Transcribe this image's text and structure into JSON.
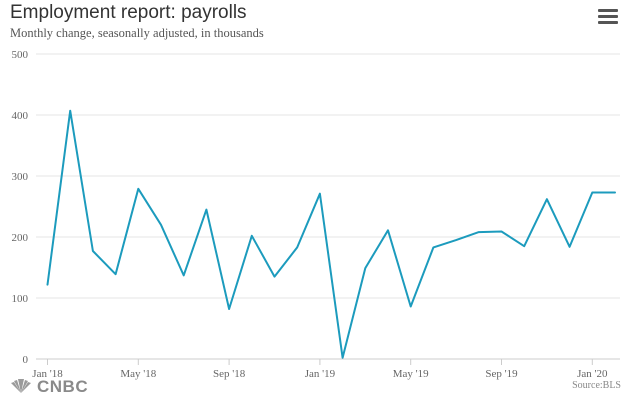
{
  "chart_data": {
    "type": "line",
    "title": "Employment report: payrolls",
    "subtitle": "Monthly change, seasonally adjusted, in thousands",
    "source": "Source:BLS",
    "logo": "CNBC",
    "x": [
      "Jan '18",
      "Feb '18",
      "Mar '18",
      "Apr '18",
      "May '18",
      "Jun '18",
      "Jul '18",
      "Aug '18",
      "Sep '18",
      "Oct '18",
      "Nov '18",
      "Dec '18",
      "Jan '19",
      "Feb '19",
      "Mar '19",
      "Apr '19",
      "May '19",
      "Jun '19",
      "Jul '19",
      "Aug '19",
      "Sep '19",
      "Oct '19",
      "Nov '19",
      "Dec '19",
      "Jan '20",
      "Feb '20"
    ],
    "values": [
      122,
      407,
      177,
      139,
      279,
      220,
      137,
      245,
      82,
      202,
      135,
      183,
      271,
      2,
      149,
      211,
      86,
      183,
      195,
      208,
      209,
      185,
      262,
      184,
      273,
      273
    ],
    "x_tick_labels": [
      {
        "index": 0,
        "label": "Jan '18"
      },
      {
        "index": 4,
        "label": "May '18"
      },
      {
        "index": 8,
        "label": "Sep '18"
      },
      {
        "index": 12,
        "label": "Jan '19"
      },
      {
        "index": 16,
        "label": "May '19"
      },
      {
        "index": 20,
        "label": "Sep '19"
      },
      {
        "index": 24,
        "label": "Jan '20"
      }
    ],
    "y_ticks": [
      0,
      100,
      200,
      300,
      400,
      500
    ],
    "ylim": [
      0,
      500
    ],
    "grid": true,
    "legend": "none",
    "line_color": "#1c9bbd"
  },
  "icons": {
    "menu": "menu-icon",
    "logo": "cnbc-peacock-icon"
  }
}
